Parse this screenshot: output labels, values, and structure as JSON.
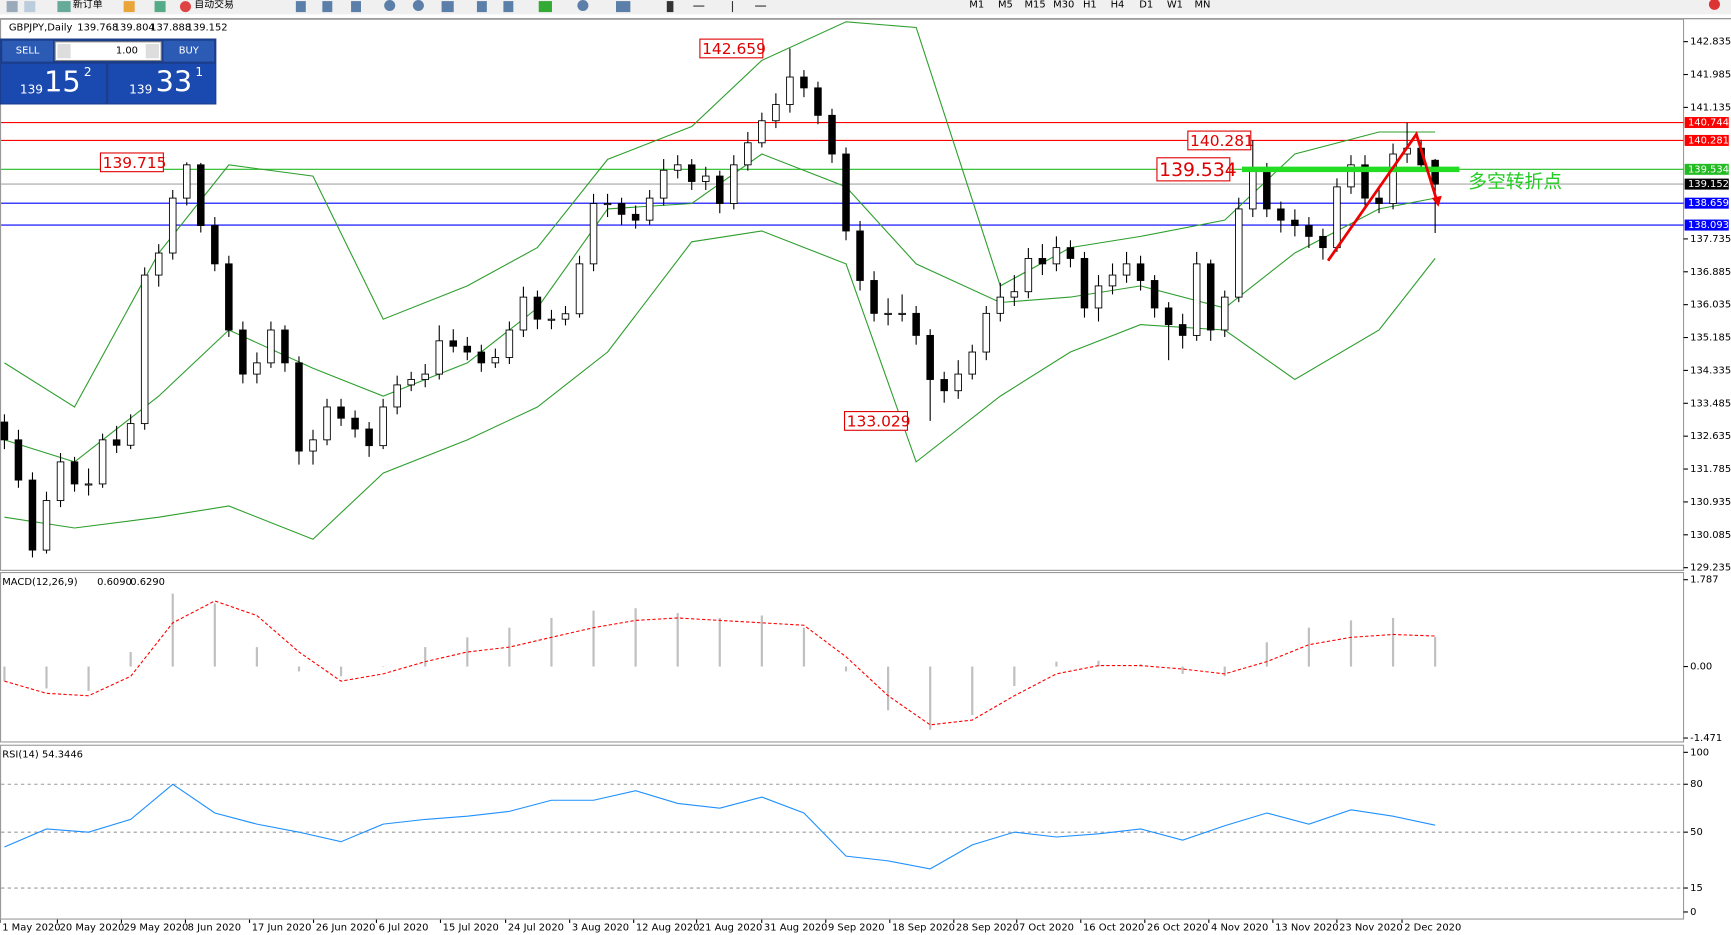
{
  "toolbar": {
    "new_order": "新订单",
    "auto_trading": "自动交易",
    "timeframes": [
      "M1",
      "M5",
      "M15",
      "M30",
      "H1",
      "H4",
      "D1",
      "W1",
      "MN"
    ]
  },
  "trade_panel": {
    "sell_label": "SELL",
    "lot": "1.00",
    "buy_label": "BUY",
    "sell": {
      "figure": "139",
      "pips": "15",
      "point": "2"
    },
    "buy": {
      "figure": "139",
      "pips": "33",
      "point": "1"
    }
  },
  "chart_data": [
    {
      "type": "candlestick",
      "title": "GBPJPY,Daily",
      "candles": [
        [
          133.0,
          133.2,
          132.3,
          132.54
        ],
        [
          132.54,
          132.8,
          131.3,
          131.5
        ],
        [
          131.5,
          131.7,
          129.5,
          129.69
        ],
        [
          129.69,
          131.2,
          129.6,
          130.97
        ],
        [
          130.97,
          132.2,
          130.8,
          131.97
        ],
        [
          131.97,
          132.1,
          131.2,
          131.4
        ],
        [
          131.4,
          131.8,
          131.1,
          131.4
        ],
        [
          131.4,
          132.7,
          131.3,
          132.54
        ],
        [
          132.54,
          132.9,
          132.2,
          132.4
        ],
        [
          132.4,
          133.2,
          132.3,
          132.96
        ],
        [
          132.96,
          137.0,
          132.8,
          136.8
        ],
        [
          136.8,
          137.6,
          136.5,
          137.37
        ],
        [
          137.37,
          139.0,
          137.2,
          138.79
        ],
        [
          138.79,
          139.715,
          138.6,
          139.65
        ],
        [
          139.65,
          139.7,
          137.9,
          138.08
        ],
        [
          138.08,
          138.3,
          136.9,
          137.09
        ],
        [
          137.09,
          137.3,
          135.2,
          135.38
        ],
        [
          135.38,
          135.6,
          134.0,
          134.24
        ],
        [
          134.24,
          134.8,
          134.0,
          134.53
        ],
        [
          134.53,
          135.6,
          134.4,
          135.38
        ],
        [
          135.38,
          135.5,
          134.3,
          134.53
        ],
        [
          134.53,
          134.7,
          131.9,
          132.25
        ],
        [
          132.25,
          132.8,
          131.9,
          132.54
        ],
        [
          132.54,
          133.6,
          132.4,
          133.39
        ],
        [
          133.39,
          133.6,
          132.9,
          133.1
        ],
        [
          133.1,
          133.3,
          132.6,
          132.82
        ],
        [
          132.82,
          133.0,
          132.1,
          132.39
        ],
        [
          132.39,
          133.6,
          132.3,
          133.39
        ],
        [
          133.39,
          134.2,
          133.2,
          133.96
        ],
        [
          133.96,
          134.3,
          133.8,
          134.1
        ],
        [
          134.1,
          134.5,
          133.9,
          134.24
        ],
        [
          134.24,
          135.5,
          134.1,
          135.1
        ],
        [
          135.1,
          135.4,
          134.8,
          134.96
        ],
        [
          134.96,
          135.2,
          134.6,
          134.81
        ],
        [
          134.81,
          135.0,
          134.3,
          134.53
        ],
        [
          134.53,
          134.9,
          134.4,
          134.67
        ],
        [
          134.67,
          135.6,
          134.5,
          135.38
        ],
        [
          135.38,
          136.5,
          135.2,
          136.23
        ],
        [
          136.23,
          136.4,
          135.4,
          135.66
        ],
        [
          135.66,
          135.9,
          135.4,
          135.66
        ],
        [
          135.66,
          136.0,
          135.5,
          135.8
        ],
        [
          135.8,
          137.3,
          135.7,
          137.09
        ],
        [
          137.09,
          138.9,
          136.9,
          138.65
        ],
        [
          138.65,
          138.9,
          138.3,
          138.65
        ],
        [
          138.65,
          138.8,
          138.1,
          138.37
        ],
        [
          138.37,
          138.6,
          138.0,
          138.22
        ],
        [
          138.22,
          139.0,
          138.1,
          138.79
        ],
        [
          138.79,
          139.8,
          138.6,
          139.51
        ],
        [
          139.51,
          139.9,
          139.3,
          139.65
        ],
        [
          139.65,
          139.8,
          139.0,
          139.22
        ],
        [
          139.22,
          139.6,
          139.0,
          139.36
        ],
        [
          139.36,
          139.5,
          138.4,
          138.65
        ],
        [
          138.65,
          139.9,
          138.5,
          139.65
        ],
        [
          139.65,
          140.5,
          139.5,
          140.22
        ],
        [
          140.22,
          141.0,
          140.1,
          140.79
        ],
        [
          140.79,
          141.5,
          140.6,
          141.21
        ],
        [
          141.21,
          142.659,
          141.0,
          141.92
        ],
        [
          141.92,
          142.1,
          141.4,
          141.64
        ],
        [
          141.64,
          141.8,
          140.7,
          140.93
        ],
        [
          140.93,
          141.1,
          139.7,
          139.93
        ],
        [
          139.93,
          140.1,
          137.7,
          137.94
        ],
        [
          137.94,
          138.2,
          136.4,
          136.66
        ],
        [
          136.66,
          136.9,
          135.6,
          135.81
        ],
        [
          135.81,
          136.2,
          135.5,
          135.81
        ],
        [
          135.81,
          136.3,
          135.6,
          135.81
        ],
        [
          135.81,
          136.0,
          135.0,
          135.24
        ],
        [
          135.24,
          135.4,
          133.029,
          134.1
        ],
        [
          134.1,
          134.3,
          133.5,
          133.81
        ],
        [
          133.81,
          134.6,
          133.6,
          134.24
        ],
        [
          134.24,
          135.0,
          134.1,
          134.81
        ],
        [
          134.81,
          136.0,
          134.6,
          135.81
        ],
        [
          135.81,
          136.6,
          135.6,
          136.23
        ],
        [
          136.23,
          136.8,
          136.0,
          136.37
        ],
        [
          136.37,
          137.5,
          136.2,
          137.23
        ],
        [
          137.23,
          137.6,
          136.8,
          137.09
        ],
        [
          137.09,
          137.8,
          136.9,
          137.51
        ],
        [
          137.51,
          137.7,
          137.0,
          137.23
        ],
        [
          137.23,
          137.4,
          135.7,
          135.95
        ],
        [
          135.95,
          136.8,
          135.6,
          136.52
        ],
        [
          136.52,
          137.1,
          136.3,
          136.8
        ],
        [
          136.8,
          137.4,
          136.6,
          137.09
        ],
        [
          137.09,
          137.3,
          136.4,
          136.66
        ],
        [
          136.66,
          136.8,
          135.7,
          135.95
        ],
        [
          135.95,
          136.1,
          134.6,
          135.52
        ],
        [
          135.52,
          135.8,
          134.9,
          135.24
        ],
        [
          135.24,
          137.4,
          135.1,
          137.09
        ],
        [
          137.09,
          137.2,
          135.1,
          135.38
        ],
        [
          135.38,
          136.4,
          135.2,
          136.23
        ],
        [
          136.23,
          138.8,
          136.1,
          138.51
        ],
        [
          138.51,
          140.281,
          138.3,
          139.51
        ],
        [
          139.51,
          139.7,
          138.3,
          138.51
        ],
        [
          138.51,
          138.7,
          137.9,
          138.22
        ],
        [
          138.22,
          138.5,
          137.8,
          138.08
        ],
        [
          138.08,
          138.3,
          137.5,
          137.8
        ],
        [
          137.8,
          138.0,
          137.2,
          137.51
        ],
        [
          137.51,
          139.3,
          137.4,
          139.08
        ],
        [
          139.08,
          139.9,
          138.9,
          139.65
        ],
        [
          139.65,
          139.9,
          138.6,
          138.79
        ],
        [
          138.79,
          139.1,
          138.4,
          138.65
        ],
        [
          138.65,
          140.2,
          138.5,
          139.93
        ],
        [
          139.93,
          140.744,
          139.7,
          140.08
        ],
        [
          140.08,
          140.3,
          139.5,
          139.65
        ],
        [
          139.768,
          139.804,
          137.888,
          139.152
        ]
      ],
      "ylim": [
        129.18,
        143.4
      ],
      "yticks": [
        142.835,
        141.985,
        141.135,
        137.735,
        136.885,
        136.035,
        135.185,
        134.335,
        133.485,
        132.635,
        131.785,
        130.935,
        130.085,
        129.235
      ],
      "hlines": [
        {
          "value": 140.744,
          "color": "#ff0000"
        },
        {
          "value": 140.281,
          "color": "#ff0000"
        },
        {
          "value": 139.534,
          "color": "#22bb22"
        },
        {
          "value": 139.152,
          "color": "#000000"
        },
        {
          "value": 138.659,
          "color": "#0000ff"
        },
        {
          "value": 138.093,
          "color": "#0000ff"
        }
      ],
      "bands": {
        "color": "#2e9e2e",
        "x": [
          0,
          5,
          11,
          16,
          22,
          27,
          33,
          38,
          43,
          49,
          54,
          60,
          65,
          71,
          76,
          81,
          87,
          92,
          98,
          102
        ],
        "upper": [
          134.53,
          133.39,
          137.37,
          139.65,
          139.36,
          135.66,
          136.52,
          137.51,
          139.79,
          140.64,
          142.35,
          143.35,
          143.2,
          136.52,
          137.51,
          137.8,
          138.22,
          139.93,
          140.5,
          140.5
        ],
        "middle": [
          132.54,
          131.97,
          133.67,
          135.38,
          134.39,
          133.67,
          134.53,
          135.95,
          138.51,
          138.65,
          139.93,
          139.08,
          137.09,
          136.09,
          136.23,
          136.52,
          135.95,
          137.37,
          138.51,
          138.79
        ],
        "lower": [
          130.54,
          130.26,
          130.54,
          130.83,
          129.97,
          131.68,
          132.54,
          133.39,
          134.81,
          137.66,
          137.94,
          137.09,
          131.97,
          133.67,
          134.81,
          135.52,
          135.38,
          134.1,
          135.38,
          137.23
        ]
      },
      "annotations": [
        {
          "value": 142.659
        },
        {
          "value": 139.715
        },
        {
          "value": 133.029
        },
        {
          "value": 140.281
        },
        {
          "value": 139.534
        }
      ],
      "note": "多空转折点",
      "x_labels": [
        "1 May 2020",
        "20 May 2020",
        "29 May 2020",
        "8 Jun 2020",
        "17 Jun 2020",
        "26 Jun 2020",
        "6 Jul 2020",
        "15 Jul 2020",
        "24 Jul 2020",
        "3 Aug 2020",
        "12 Aug 2020",
        "21 Aug 2020",
        "31 Aug 2020",
        "9 Sep 2020",
        "18 Sep 2020",
        "28 Sep 2020",
        "7 Oct 2020",
        "16 Oct 2020",
        "26 Oct 2020",
        "4 Nov 2020",
        "13 Nov 2020",
        "23 Nov 2020",
        "2 Dec 2020"
      ]
    },
    {
      "type": "macd",
      "title": "MACD(12,26,9)",
      "x": [
        0,
        3,
        6,
        9,
        12,
        15,
        18,
        21,
        24,
        27,
        30,
        33,
        36,
        39,
        42,
        45,
        48,
        51,
        54,
        57,
        60,
        63,
        66,
        69,
        72,
        75,
        78,
        81,
        84,
        87,
        90,
        93,
        96,
        99,
        102
      ],
      "values": [
        -0.3,
        -0.45,
        -0.5,
        0.3,
        1.5,
        1.3,
        0.4,
        -0.1,
        -0.2,
        0,
        0.4,
        0.6,
        0.8,
        1.0,
        1.15,
        1.2,
        1.1,
        1.0,
        1.05,
        0.8,
        -0.1,
        -0.9,
        -1.3,
        -1.0,
        -0.4,
        0.1,
        0.12,
        0.05,
        -0.15,
        -0.2,
        0.5,
        0.8,
        0.95,
        1.0,
        0.609
      ],
      "signal": [
        -0.3,
        -0.55,
        -0.6,
        -0.2,
        0.9,
        1.35,
        1.05,
        0.3,
        -0.3,
        -0.15,
        0.1,
        0.3,
        0.4,
        0.6,
        0.8,
        0.95,
        1.0,
        0.95,
        0.9,
        0.85,
        0.2,
        -0.6,
        -1.2,
        -1.1,
        -0.6,
        -0.15,
        0.02,
        0.02,
        -0.05,
        -0.15,
        0.1,
        0.45,
        0.6,
        0.66,
        0.629
      ],
      "current": {
        "main": {
          "value": 0.609,
          "label": "0.6090"
        },
        "signal": {
          "value": 0.629,
          "label": "0.6290"
        }
      },
      "color": "#c0c0c0",
      "signal_color": "#ff0000",
      "ylim": [
        -1.54,
        1.9
      ],
      "yticks": [
        1.787,
        {
          "value": 0,
          "label": "0.00"
        },
        -1.471
      ]
    },
    {
      "type": "rsi",
      "title": "RSI(14)",
      "x": [
        0,
        3,
        6,
        9,
        12,
        15,
        18,
        21,
        24,
        27,
        30,
        33,
        36,
        39,
        42,
        45,
        48,
        51,
        54,
        57,
        60,
        63,
        66,
        69,
        72,
        75,
        78,
        81,
        84,
        87,
        90,
        93,
        96,
        99,
        102
      ],
      "values": [
        40.7,
        52,
        50,
        58,
        80,
        62,
        55,
        50,
        44,
        55,
        58,
        60,
        63,
        70,
        70,
        76,
        68,
        65,
        72,
        62,
        35,
        32,
        27,
        42,
        50,
        47,
        49,
        52,
        45,
        54,
        62,
        55,
        64,
        60,
        54.3446
      ],
      "color": "#1e90ff",
      "ylim": [
        -3.4,
        103.4
      ],
      "yticks": [
        100,
        80,
        50,
        15,
        0
      ],
      "levels": [
        80,
        50,
        15
      ]
    }
  ]
}
